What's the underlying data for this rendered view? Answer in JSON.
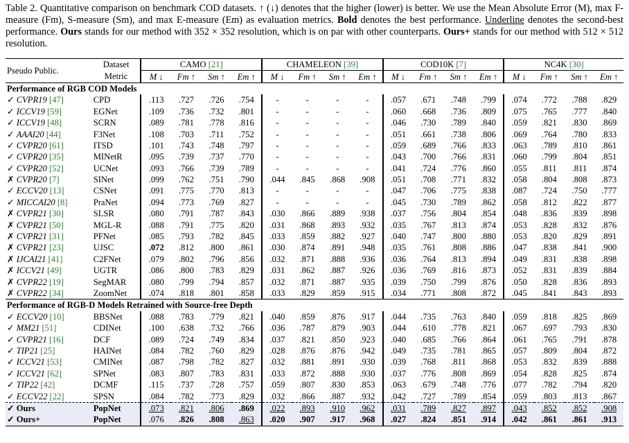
{
  "caption": {
    "label": "Table 2.",
    "t1": "Quantitative comparison on benchmark COD datasets. ↑ (↓) denotes that the higher (lower) is better. We use the Mean Absolute Error (M), max F-measure (Fm), S-measure (Sm), and max E-measure (Em) as evaluation metrics.",
    "bold_word": "Bold",
    "t2": "denotes the best performance.",
    "underline_word": "Underline",
    "t3": "denotes the second-best performance.",
    "ours_word": "Ours",
    "t4": "stands for our method with 352 × 352 resolution, which is on par with other counterparts.",
    "oursplus_word": "Ours+",
    "t5": "stands for our method with 512 × 512 resolution."
  },
  "header": {
    "pseudo_public": "Pseudo  Public.",
    "dataset": "Dataset",
    "metric": "Metric",
    "datasets": [
      {
        "name": "CAMO",
        "cite": "[21]"
      },
      {
        "name": "CHAMELEON",
        "cite": "[39]"
      },
      {
        "name": "COD10K",
        "cite": "[7]"
      },
      {
        "name": "NC4K",
        "cite": "[30]"
      }
    ],
    "metrics": [
      "M ↓",
      "Fm ↑",
      "Sm ↑",
      "Em ↑"
    ]
  },
  "sections": [
    {
      "title": "Performance of RGB COD Models",
      "rows": [
        {
          "mark": "✓",
          "venue": "CVPR19",
          "cite": "[47]",
          "method": "CPD",
          "vals": [
            ".113",
            ".727",
            ".726",
            ".754",
            "-",
            "-",
            "-",
            "-",
            ".057",
            ".671",
            ".748",
            ".799",
            ".074",
            ".772",
            ".788",
            ".829"
          ]
        },
        {
          "mark": "✓",
          "venue": "ICCV19",
          "cite": "[59]",
          "method": "EGNet",
          "vals": [
            ".109",
            ".736",
            ".732",
            ".801",
            "-",
            "-",
            "-",
            "-",
            ".060",
            ".668",
            ".736",
            ".809",
            ".075",
            ".765",
            ".777",
            ".840"
          ]
        },
        {
          "mark": "✓",
          "venue": "ICCV19",
          "cite": "[48]",
          "method": "SCRN",
          "vals": [
            ".089",
            ".781",
            ".778",
            ".816",
            "-",
            "-",
            "-",
            "-",
            ".046",
            ".730",
            ".789",
            ".840",
            ".059",
            ".821",
            ".830",
            ".869"
          ]
        },
        {
          "mark": "✓",
          "venue": "AAAI20",
          "cite": "[44]",
          "method": "F3Net",
          "vals": [
            ".108",
            ".703",
            ".711",
            ".752",
            "-",
            "-",
            "-",
            "-",
            ".051",
            ".661",
            ".738",
            ".806",
            ".069",
            ".764",
            ".780",
            ".833"
          ]
        },
        {
          "mark": "✓",
          "venue": "CVPR20",
          "cite": "[61]",
          "method": "ITSD",
          "vals": [
            ".101",
            ".743",
            ".748",
            ".797",
            "-",
            "-",
            "-",
            "-",
            ".059",
            ".689",
            ".766",
            ".833",
            ".063",
            ".789",
            ".810",
            ".861"
          ]
        },
        {
          "mark": "✓",
          "venue": "CVPR20",
          "cite": "[35]",
          "method": "MINetR",
          "vals": [
            ".095",
            ".739",
            ".737",
            ".770",
            "-",
            "-",
            "-",
            "-",
            ".043",
            ".700",
            ".766",
            ".831",
            ".060",
            ".799",
            ".804",
            ".851"
          ]
        },
        {
          "mark": "✓",
          "venue": "CVPR20",
          "cite": "[52]",
          "method": "UCNet",
          "vals": [
            ".093",
            ".766",
            ".739",
            ".789",
            "-",
            "-",
            "-",
            "-",
            ".041",
            ".724",
            ".776",
            ".860",
            ".055",
            ".811",
            ".811",
            ".874"
          ]
        },
        {
          "mark": "✗",
          "venue": "CVPR20",
          "cite": "[7]",
          "method": "SINet",
          "vals": [
            ".099",
            ".762",
            ".751",
            ".790",
            ".044",
            ".845",
            ".868",
            ".908",
            ".051",
            ".708",
            ".771",
            ".832",
            ".058",
            ".804",
            ".808",
            ".873"
          ]
        },
        {
          "mark": "✓",
          "venue": "ECCV20",
          "cite": "[13]",
          "method": "CSNet",
          "vals": [
            ".091",
            ".775",
            ".770",
            ".813",
            "-",
            "-",
            "-",
            "-",
            ".047",
            ".706",
            ".775",
            ".838",
            ".087",
            ".724",
            ".750",
            ".777"
          ]
        },
        {
          "mark": "✓",
          "venue": "MICCAI20",
          "cite": "[8]",
          "method": "PraNet",
          "vals": [
            ".094",
            ".773",
            ".769",
            ".827",
            "-",
            "-",
            "-",
            "-",
            ".045",
            ".730",
            ".789",
            ".862",
            ".058",
            ".812",
            ".822",
            ".877"
          ]
        },
        {
          "mark": "✗",
          "venue": "CVPR21",
          "cite": "[30]",
          "method": "SLSR",
          "vals": [
            ".080",
            ".791",
            ".787",
            ".843",
            ".030",
            ".866",
            ".889",
            ".938",
            ".037",
            ".756",
            ".804",
            ".854",
            ".048",
            ".836",
            ".839",
            ".898"
          ]
        },
        {
          "mark": "✗",
          "venue": "CVPR21",
          "cite": "[50]",
          "method": "MGL-R",
          "vals": [
            ".088",
            ".791",
            ".775",
            ".820",
            ".031",
            ".868",
            ".893",
            ".932",
            ".035",
            ".767",
            ".813",
            ".874",
            ".053",
            ".828",
            ".832",
            ".876"
          ]
        },
        {
          "mark": "✗",
          "venue": "CVPR21",
          "cite": "[31]",
          "method": "PFNet",
          "vals": [
            ".085",
            ".793",
            ".782",
            ".845",
            ".033",
            ".859",
            ".882",
            ".927",
            ".040",
            ".747",
            ".800",
            ".880",
            ".053",
            ".820",
            ".829",
            ".891"
          ]
        },
        {
          "mark": "✗",
          "venue": "CVPR21",
          "cite": "[23]",
          "method": "UJSC",
          "vals": [
            ".072",
            ".812",
            ".800",
            ".861",
            ".030",
            ".874",
            ".891",
            ".948",
            ".035",
            ".761",
            ".808",
            ".886",
            ".047",
            ".838",
            ".841",
            ".900"
          ],
          "bold": [
            0
          ]
        },
        {
          "mark": "✗",
          "venue": "IJCAI21",
          "cite": "[41]",
          "method": "C2FNet",
          "vals": [
            ".079",
            ".802",
            ".796",
            ".856",
            ".032",
            ".871",
            ".888",
            ".936",
            ".036",
            ".764",
            ".813",
            ".894",
            ".049",
            ".831",
            ".838",
            ".898"
          ]
        },
        {
          "mark": "✗",
          "venue": "ICCV21",
          "cite": "[49]",
          "method": "UGTR",
          "vals": [
            ".086",
            ".800",
            ".783",
            ".829",
            ".031",
            ".862",
            ".887",
            ".926",
            ".036",
            ".769",
            ".816",
            ".873",
            ".052",
            ".831",
            ".839",
            ".884"
          ]
        },
        {
          "mark": "✗",
          "venue": "CVPR22",
          "cite": "[19]",
          "method": "SegMAR",
          "vals": [
            ".080",
            ".799",
            ".794",
            ".857",
            ".032",
            ".871",
            ".887",
            ".935",
            ".039",
            ".750",
            ".799",
            ".876",
            ".050",
            ".828",
            ".836",
            ".893"
          ]
        },
        {
          "mark": "✗",
          "venue": "CVPR22",
          "cite": "[34]",
          "method": "ZoomNet",
          "vals": [
            ".074",
            ".818",
            ".801",
            ".858",
            ".033",
            ".829",
            ".859",
            ".915",
            ".034",
            ".771",
            ".808",
            ".872",
            ".045",
            ".841",
            ".843",
            ".893"
          ]
        }
      ]
    },
    {
      "title": "Performance of RGB-D Models Retrained with Source-free Depth",
      "rows": [
        {
          "mark": "✓",
          "venue": "ECCV20",
          "cite": "[10]",
          "method": "BBSNet",
          "vals": [
            ".088",
            ".783",
            ".779",
            ".821",
            ".040",
            ".859",
            ".876",
            ".917",
            ".044",
            ".735",
            ".763",
            ".840",
            ".059",
            ".818",
            ".825",
            ".869"
          ]
        },
        {
          "mark": "✓",
          "venue": "MM21",
          "cite": "[51]",
          "method": "CDINet",
          "vals": [
            ".100",
            ".638",
            ".732",
            ".766",
            ".036",
            ".787",
            ".879",
            ".903",
            ".044",
            ".610",
            ".778",
            ".821",
            ".067",
            ".697",
            ".793",
            ".830"
          ]
        },
        {
          "mark": "✓",
          "venue": "CVPR21",
          "cite": "[16]",
          "method": "DCF",
          "vals": [
            ".089",
            ".724",
            ".749",
            ".834",
            ".037",
            ".821",
            ".850",
            ".923",
            ".040",
            ".685",
            ".766",
            ".864",
            ".061",
            ".765",
            ".791",
            ".878"
          ]
        },
        {
          "mark": "✓",
          "venue": "TIP21",
          "cite": "[25]",
          "method": "HAINet",
          "vals": [
            ".084",
            ".782",
            ".760",
            ".829",
            ".028",
            ".876",
            ".876",
            ".942",
            ".049",
            ".735",
            ".781",
            ".865",
            ".057",
            ".809",
            ".804",
            ".872"
          ]
        },
        {
          "mark": "✓",
          "venue": "ICCV21",
          "cite": "[53]",
          "method": "CMINet",
          "vals": [
            ".087",
            ".798",
            ".782",
            ".827",
            ".032",
            ".881",
            ".891",
            ".930",
            ".039",
            ".768",
            ".811",
            ".868",
            ".053",
            ".832",
            ".839",
            ".888"
          ]
        },
        {
          "mark": "✓",
          "venue": "ICCV21",
          "cite": "[62]",
          "method": "SPNet",
          "vals": [
            ".083",
            ".807",
            ".783",
            ".831",
            ".033",
            ".872",
            ".888",
            ".930",
            ".037",
            ".776",
            ".808",
            ".869",
            ".054",
            ".828",
            ".825",
            ".874"
          ]
        },
        {
          "mark": "✓",
          "venue": "TIP22",
          "cite": "[42]",
          "method": "DCMF",
          "vals": [
            ".115",
            ".737",
            ".728",
            ".757",
            ".059",
            ".807",
            ".830",
            ".853",
            ".063",
            ".679",
            ".748",
            ".776",
            ".077",
            ".782",
            ".794",
            ".820"
          ]
        },
        {
          "mark": "✓",
          "venue": "ECCV22",
          "cite": "[22]",
          "method": "SPSN",
          "vals": [
            ".084",
            ".782",
            ".773",
            ".829",
            ".032",
            ".866",
            ".887",
            ".932",
            ".042",
            ".727",
            ".789",
            ".854",
            ".059",
            ".803",
            ".813",
            ".867"
          ]
        }
      ]
    }
  ],
  "ours_rows": [
    {
      "mark": "✓",
      "label": "Ours",
      "method": "PopNet",
      "vals": [
        ".073",
        ".821",
        ".806",
        ".869",
        ".022",
        ".893",
        ".910",
        ".962",
        ".031",
        ".789",
        ".827",
        ".897",
        ".043",
        ".852",
        ".852",
        ".908"
      ],
      "bold": [
        3
      ],
      "underline": [
        0,
        1,
        2,
        4,
        5,
        6,
        7,
        8,
        9,
        10,
        11,
        12,
        13,
        14,
        15
      ]
    },
    {
      "mark": "✓",
      "label": "Ours+",
      "method": "PopNet",
      "vals": [
        ".076",
        ".826",
        ".808",
        ".863",
        ".020",
        ".907",
        ".917",
        ".968",
        ".027",
        ".824",
        ".851",
        ".914",
        ".042",
        ".861",
        ".861",
        ".913"
      ],
      "bold": [
        1,
        2,
        4,
        5,
        6,
        7,
        8,
        9,
        10,
        11,
        12,
        13,
        14,
        15
      ],
      "underline": [
        3
      ]
    }
  ]
}
